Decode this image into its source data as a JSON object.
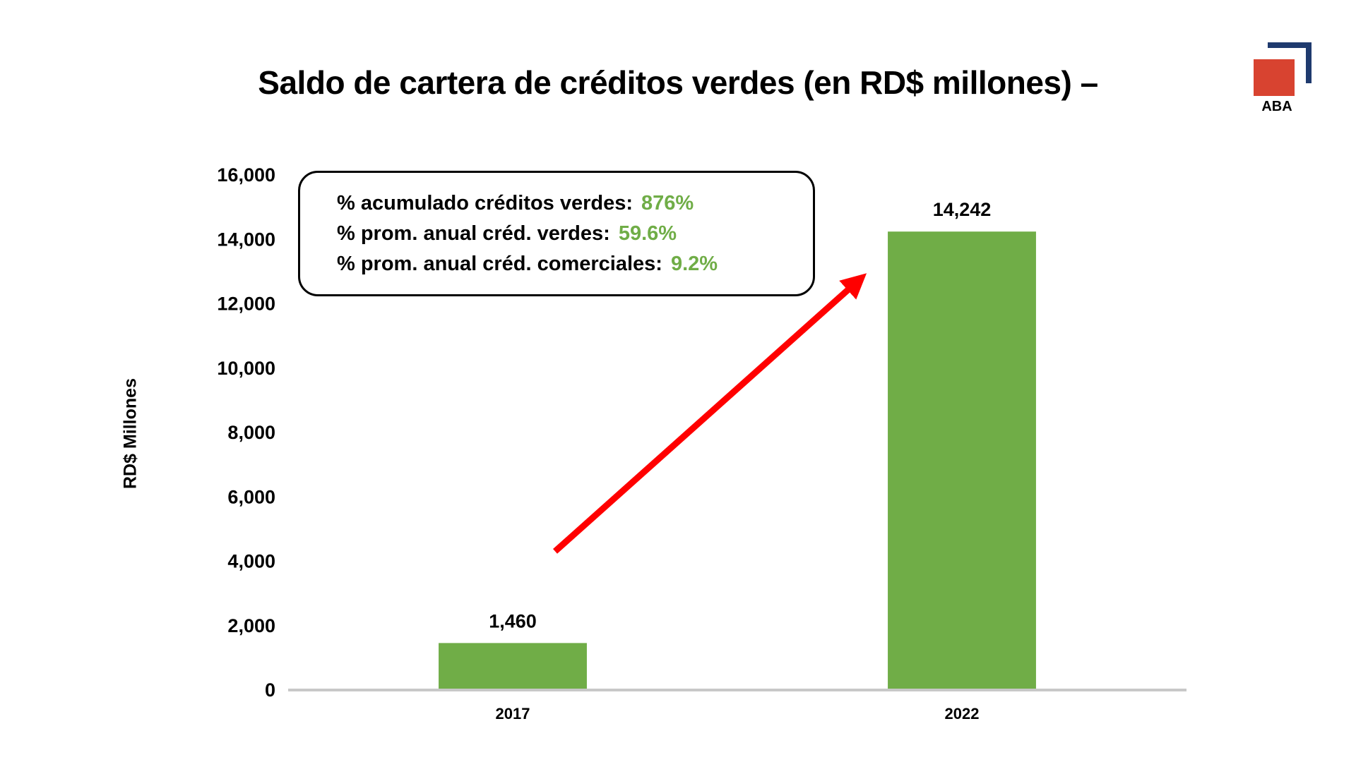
{
  "title": "Saldo de cartera de créditos verdes (en RD$ millones) –",
  "logo": {
    "text": "ABA",
    "square_color": "#D84330",
    "bracket_color": "#1F3A6E"
  },
  "info_box": {
    "lines": [
      {
        "label": "% acumulado créditos verdes:",
        "value": "876%"
      },
      {
        "label": "% prom. anual créd. verdes:",
        "value": "59.6%"
      },
      {
        "label": "% prom. anual créd. comerciales:",
        "value": "9.2%"
      }
    ],
    "value_color": "#70AD47"
  },
  "chart_data": {
    "type": "bar",
    "title": "Saldo de cartera de créditos verdes (en RD$ millones) –",
    "xlabel": "",
    "ylabel": "RD$ Millones",
    "categories": [
      "2017",
      "2022"
    ],
    "values": [
      1460,
      14242
    ],
    "data_labels": [
      "1,460",
      "14,242"
    ],
    "ylim": [
      0,
      16000
    ],
    "yticks": [
      0,
      2000,
      4000,
      6000,
      8000,
      10000,
      12000,
      14000,
      16000
    ],
    "ytick_labels": [
      "0",
      "2,000",
      "4,000",
      "6,000",
      "8,000",
      "10,000",
      "12,000",
      "14,000",
      "16,000"
    ],
    "grid": false,
    "bar_color": "#70AD47",
    "axis_color": "#C8C8C8",
    "arrow": {
      "color": "#FF0000",
      "from_category": "2017",
      "to_category": "2022"
    }
  }
}
